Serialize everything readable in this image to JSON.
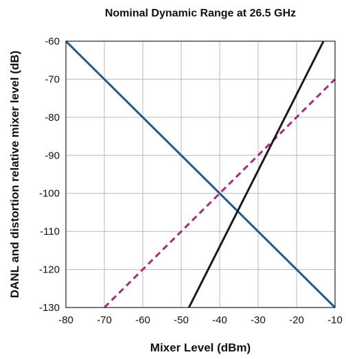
{
  "chart_data": {
    "type": "line",
    "title": "Nominal Dynamic Range at 26.5 GHz",
    "xlabel": "Mixer Level (dBm)",
    "ylabel": "DANL and distortion relative mixer level (dB)",
    "xlim": [
      -80,
      -10
    ],
    "ylim": [
      -130,
      -60
    ],
    "x_ticks": [
      -80,
      -70,
      -60,
      -50,
      -40,
      -30,
      -20,
      -10
    ],
    "y_ticks": [
      -60,
      -70,
      -80,
      -90,
      -100,
      -110,
      -120,
      -130
    ],
    "grid": true,
    "series": [
      {
        "color": "#1f5a8c",
        "dash": "",
        "x": [
          -80,
          -10
        ],
        "y": [
          -60,
          -130
        ]
      },
      {
        "color": "#b5247a",
        "dash": "9,6",
        "x": [
          -70,
          -10
        ],
        "y": [
          -130,
          -70
        ]
      },
      {
        "color": "#1a1a1a",
        "dash": "",
        "x": [
          -48,
          -13
        ],
        "y": [
          -130,
          -60
        ]
      }
    ]
  }
}
